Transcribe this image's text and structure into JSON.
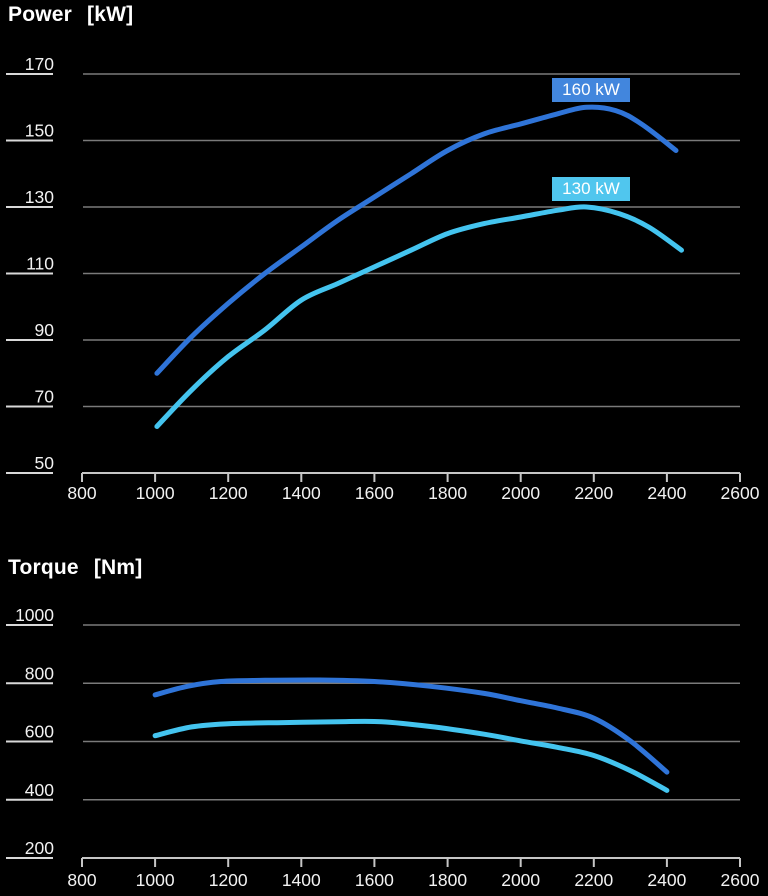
{
  "colors": {
    "background": "#000000",
    "grid": "#7a7a7a",
    "axis": "#c6c6c6",
    "tick_dash": "#d9d9d9",
    "text": "#f2f2f2"
  },
  "chart_data": [
    {
      "type": "line",
      "title": "Power",
      "unit": "[kW]",
      "grid": true,
      "legend_position": "badges-above-curves",
      "x": {
        "range": [
          800,
          2600
        ],
        "ticks": [
          800,
          1000,
          1200,
          1400,
          1600,
          1800,
          2000,
          2200,
          2400,
          2600
        ]
      },
      "y": {
        "range": [
          50,
          170
        ],
        "ticks": [
          170,
          150,
          130,
          110,
          90,
          70,
          50
        ]
      },
      "series": [
        {
          "name": "160 kW",
          "color": "#2f74d8",
          "badge_bg": "#4286dd",
          "points": [
            [
              1005,
              80
            ],
            [
              1100,
              91
            ],
            [
              1200,
              101
            ],
            [
              1300,
              110
            ],
            [
              1400,
              118
            ],
            [
              1500,
              126
            ],
            [
              1600,
              133
            ],
            [
              1700,
              140
            ],
            [
              1800,
              147
            ],
            [
              1900,
              152
            ],
            [
              2000,
              155
            ],
            [
              2100,
              158
            ],
            [
              2180,
              160
            ],
            [
              2260,
              159
            ],
            [
              2330,
              155
            ],
            [
              2425,
              147
            ]
          ]
        },
        {
          "name": "130 kW",
          "color": "#44c4ef",
          "badge_bg": "#50c6ee",
          "points": [
            [
              1005,
              64
            ],
            [
              1100,
              75
            ],
            [
              1200,
              85
            ],
            [
              1300,
              93
            ],
            [
              1400,
              102
            ],
            [
              1500,
              107
            ],
            [
              1600,
              112
            ],
            [
              1700,
              117
            ],
            [
              1800,
              122
            ],
            [
              1900,
              125
            ],
            [
              2000,
              127
            ],
            [
              2100,
              129
            ],
            [
              2180,
              130
            ],
            [
              2270,
              128
            ],
            [
              2350,
              124
            ],
            [
              2440,
              117
            ]
          ]
        }
      ]
    },
    {
      "type": "line",
      "title": "Torque",
      "unit": "[Nm]",
      "grid": true,
      "legend_position": "none",
      "x": {
        "range": [
          800,
          2600
        ],
        "ticks": [
          800,
          1000,
          1200,
          1400,
          1600,
          1800,
          2000,
          2200,
          2400,
          2600
        ]
      },
      "y": {
        "range": [
          200,
          1000
        ],
        "ticks": [
          1000,
          800,
          600,
          400,
          200
        ]
      },
      "series": [
        {
          "name": "160 kW",
          "color": "#2f74d8",
          "points": [
            [
              1000,
              760
            ],
            [
              1090,
              790
            ],
            [
              1180,
              806
            ],
            [
              1300,
              810
            ],
            [
              1450,
              811
            ],
            [
              1600,
              806
            ],
            [
              1750,
              790
            ],
            [
              1900,
              765
            ],
            [
              2000,
              740
            ],
            [
              2100,
              715
            ],
            [
              2200,
              680
            ],
            [
              2300,
              602
            ],
            [
              2400,
              495
            ]
          ]
        },
        {
          "name": "130 kW",
          "color": "#44c4ef",
          "points": [
            [
              1000,
              620
            ],
            [
              1100,
              650
            ],
            [
              1200,
              661
            ],
            [
              1350,
              665
            ],
            [
              1500,
              668
            ],
            [
              1620,
              668
            ],
            [
              1750,
              652
            ],
            [
              1900,
              625
            ],
            [
              2000,
              602
            ],
            [
              2100,
              580
            ],
            [
              2200,
              552
            ],
            [
              2300,
              500
            ],
            [
              2400,
              432
            ]
          ]
        }
      ]
    }
  ]
}
